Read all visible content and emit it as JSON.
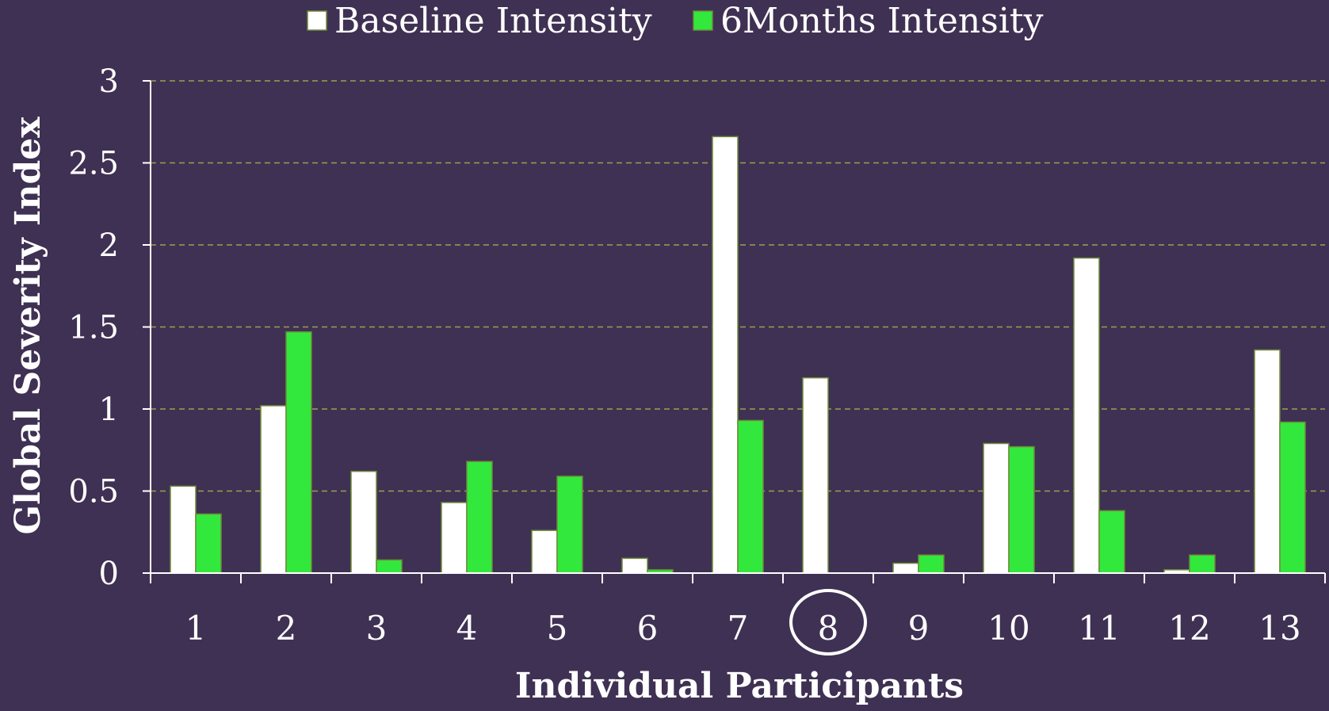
{
  "colors": {
    "background": "#3f3153",
    "baseline_fill": "#ffffff",
    "followup_fill": "#33e83c",
    "bar_outline": "#6f8a3a",
    "gridline": "#9aa050",
    "axis": "#ffffff",
    "highlight_circle": "#ffffff"
  },
  "chart_data": {
    "type": "bar",
    "title": "",
    "xlabel": "Individual Participants",
    "ylabel": "Global Severity Index",
    "ylim": [
      0,
      3
    ],
    "yticks": [
      "0",
      "0.5",
      "1",
      "1.5",
      "2",
      "2.5",
      "3"
    ],
    "ytick_values": [
      0,
      0.5,
      1,
      1.5,
      2,
      2.5,
      3
    ],
    "grid": true,
    "legend_position": "top",
    "categories": [
      "1",
      "2",
      "3",
      "4",
      "5",
      "6",
      "7",
      "8",
      "9",
      "10",
      "11",
      "12",
      "13"
    ],
    "highlighted_category": "8",
    "series": [
      {
        "name": "Baseline Intensity",
        "color": "#ffffff",
        "values": [
          0.53,
          1.02,
          0.62,
          0.43,
          0.26,
          0.09,
          2.66,
          1.19,
          0.06,
          0.79,
          1.92,
          0.02,
          1.36
        ]
      },
      {
        "name": "6Months Intensity",
        "color": "#33e83c",
        "values": [
          0.36,
          1.47,
          0.08,
          0.68,
          0.59,
          0.02,
          0.93,
          0.0,
          0.11,
          0.77,
          0.38,
          0.11,
          0.92
        ]
      }
    ]
  }
}
